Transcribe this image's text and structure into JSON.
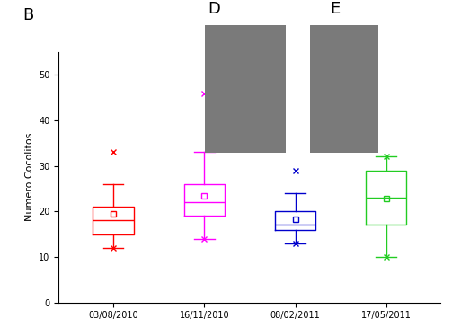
{
  "chart_data": {
    "type": "box",
    "panel_labels": [
      "B",
      "D",
      "E"
    ],
    "y_label": "Numero Cocolitos",
    "categories": [
      "03/08/2010",
      "16/11/2010",
      "08/02/2011",
      "17/05/2011"
    ],
    "colors": [
      "#ff0000",
      "#ff00ff",
      "#0000cc",
      "#22cc22"
    ],
    "whisker_low": [
      12,
      14,
      13,
      10
    ],
    "q1": [
      15,
      19,
      16,
      17
    ],
    "median": [
      18,
      22,
      17,
      23
    ],
    "q3": [
      21,
      26,
      20,
      29
    ],
    "whisker_high": [
      26,
      33,
      24,
      32
    ],
    "mean": [
      19.5,
      23.5,
      18.3,
      22.8
    ],
    "min": [
      12,
      14,
      13,
      10
    ],
    "max": [
      33,
      46,
      29,
      32
    ],
    "marker": "x",
    "ylim": [
      0,
      55
    ],
    "yticks": [
      0,
      10,
      20,
      30,
      40,
      50
    ]
  }
}
